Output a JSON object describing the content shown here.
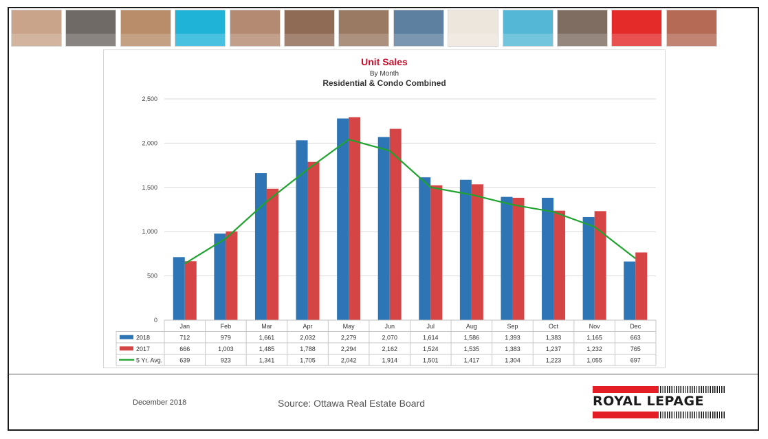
{
  "header": {
    "photo_strip_colors": [
      "#c9a48a",
      "#6f6a66",
      "#b98d6a",
      "#20b3d8",
      "#b58a72",
      "#8f6a55",
      "#9a7a62",
      "#5d7fa0",
      "#ede6dc",
      "#55b7d6",
      "#7f6d62",
      "#e52a2a",
      "#b46a55"
    ]
  },
  "chart_data": {
    "type": "bar",
    "title": "Unit Sales",
    "subtitle": "By Month",
    "subtitle2": "Residential & Condo Combined",
    "categories": [
      "Jan",
      "Feb",
      "Mar",
      "Apr",
      "May",
      "Jun",
      "Jul",
      "Aug",
      "Sep",
      "Oct",
      "Nov",
      "Dec"
    ],
    "series": [
      {
        "name": "2018",
        "kind": "bar",
        "color": "#2e75b6",
        "values": [
          712,
          979,
          1661,
          2032,
          2279,
          2070,
          1614,
          1586,
          1393,
          1383,
          1165,
          663
        ]
      },
      {
        "name": "2017",
        "kind": "bar",
        "color": "#d64545",
        "values": [
          666,
          1003,
          1485,
          1788,
          2294,
          2162,
          1524,
          1535,
          1383,
          1237,
          1232,
          765
        ]
      },
      {
        "name": "5 Yr. Avg.",
        "kind": "line",
        "color": "#1fa32e",
        "values": [
          639,
          923,
          1341,
          1705,
          2042,
          1914,
          1501,
          1417,
          1304,
          1223,
          1055,
          697
        ]
      }
    ],
    "ylim": [
      0,
      2500
    ],
    "yticks": [
      0,
      500,
      1000,
      1500,
      2000,
      2500
    ],
    "ytick_labels": [
      "0",
      "500",
      "1,000",
      "1,500",
      "2,000",
      "2,500"
    ],
    "grid": true,
    "data_table": true,
    "legend_placement": "data-table"
  },
  "footer": {
    "date": "December 2018",
    "source": "Source: Ottawa Real Estate Board",
    "logo_text": "ROYAL LEPAGE",
    "logo_color": "#e41e26"
  }
}
